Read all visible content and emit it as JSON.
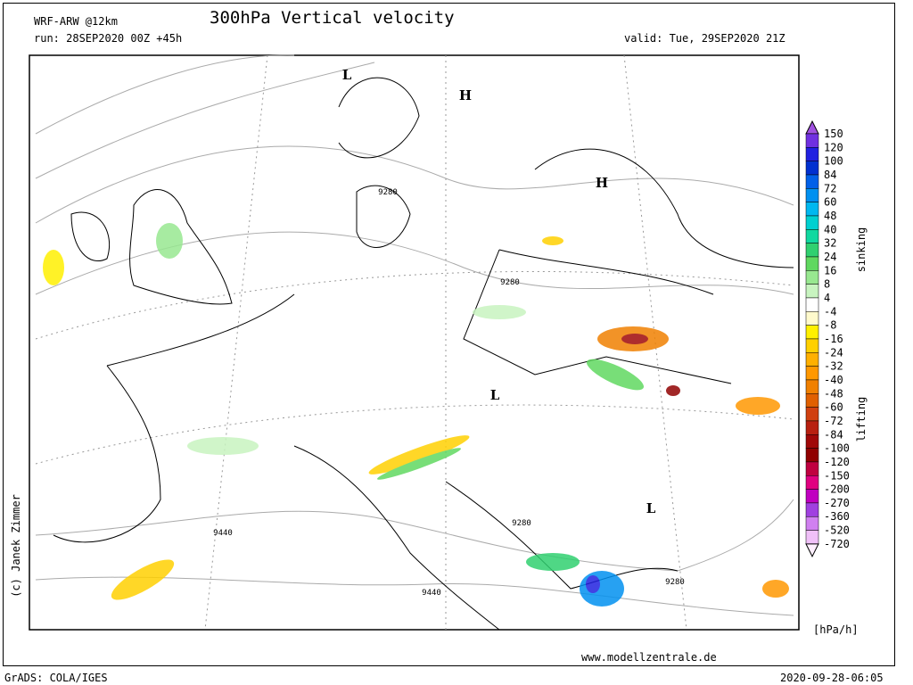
{
  "header": {
    "model": "WRF-ARW @12km",
    "title": "300hPa Vertical velocity",
    "run": "run: 28SEP2020 00Z +45h",
    "valid": "valid: Tue, 29SEP2020 21Z"
  },
  "map": {
    "pressure_centers": [
      "L",
      "H",
      "H",
      "L",
      "L"
    ],
    "contour_labels": [
      9280,
      9280,
      9280,
      9280,
      9440,
      9440
    ],
    "credit": "(c) Janek Zimmer"
  },
  "colorbar": {
    "levels": [
      150,
      120,
      100,
      84,
      72,
      60,
      48,
      40,
      32,
      24,
      16,
      8,
      4,
      -4,
      -8,
      -16,
      -24,
      -32,
      -40,
      -48,
      -60,
      -72,
      -84,
      -100,
      -120,
      -150,
      -200,
      -270,
      -360,
      -520,
      -720
    ],
    "colors": [
      "#a050e0",
      "#7030e0",
      "#2020e0",
      "#0030d0",
      "#0060e8",
      "#0090f0",
      "#00b8f0",
      "#00d0d0",
      "#10d8a0",
      "#30d070",
      "#60d860",
      "#98e890",
      "#c8f4c0",
      "#ffffff",
      "#fffacc",
      "#fff000",
      "#ffd000",
      "#ffb000",
      "#ff9800",
      "#f08000",
      "#e06000",
      "#d04010",
      "#b82010",
      "#a00808",
      "#900000",
      "#c00040",
      "#e00080",
      "#c000c0",
      "#a040e0",
      "#d080f0",
      "#f0c0f8",
      "#fff0ff"
    ],
    "upper_label": "sinking",
    "lower_label": "lifting",
    "unit": "[hPa/h]"
  },
  "footer": {
    "website": "www.modellzentrale.de",
    "software": "GrADS: COLA/IGES",
    "timestamp": "2020-09-28-06:05"
  }
}
